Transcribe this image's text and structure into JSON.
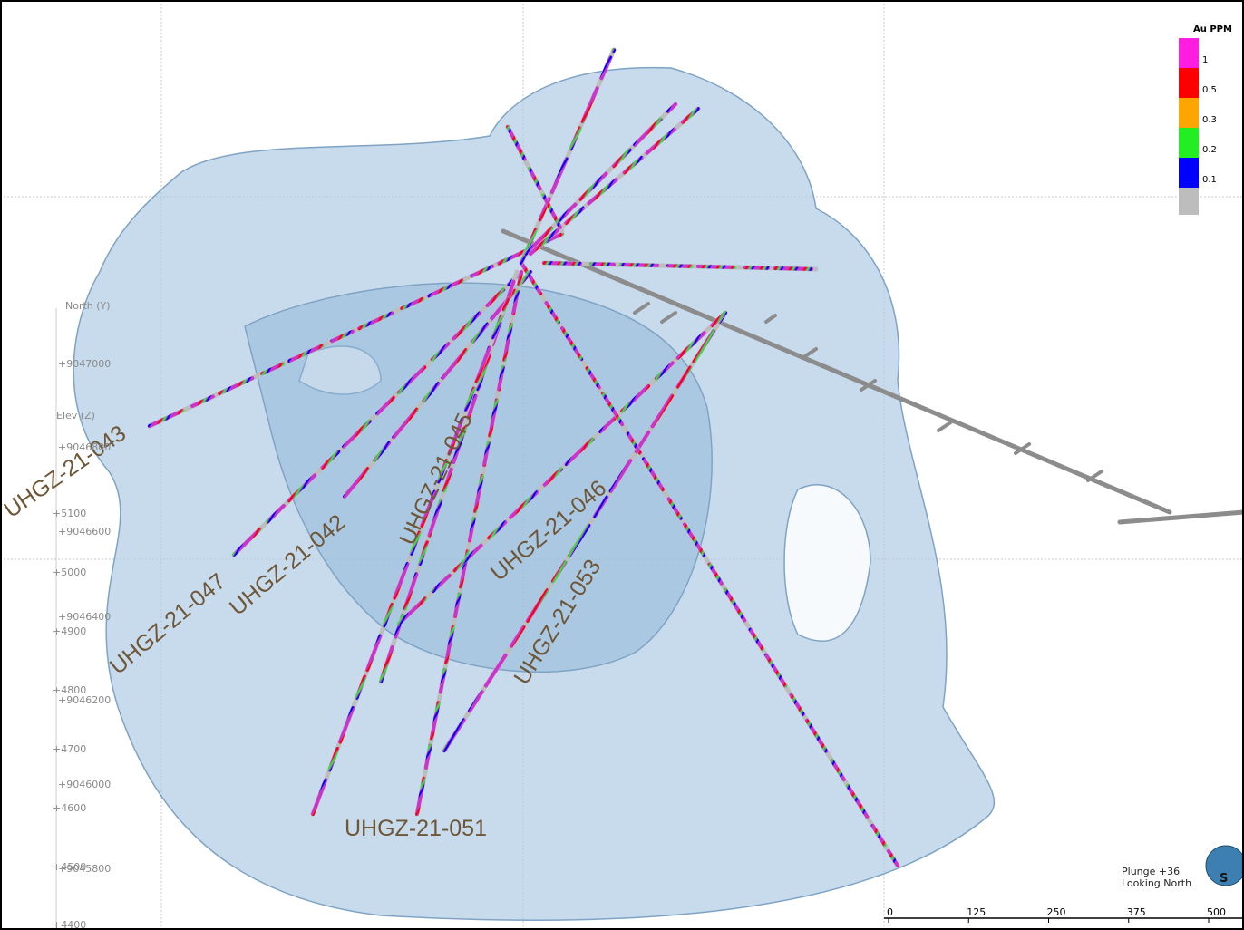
{
  "legend": {
    "title": "Au PPM",
    "items": [
      {
        "label": "1",
        "color": "#ff1ee0"
      },
      {
        "label": "0.5",
        "color": "#ff0000"
      },
      {
        "label": "0.3",
        "color": "#ffa500"
      },
      {
        "label": "0.2",
        "color": "#22ee22"
      },
      {
        "label": "0.1",
        "color": "#0000ff"
      }
    ],
    "base_color": "#bdbdbd"
  },
  "axes": {
    "north_label": "North (Y)",
    "elev_label": "Elev (Z)",
    "north_ticks": [
      "+9047000",
      "+9046800",
      "+9046600",
      "+9046400",
      "+9046200",
      "+9046000",
      "+9045800"
    ],
    "elev_ticks": [
      "+5100",
      "+5000",
      "+4900",
      "+4800",
      "+4700",
      "+4600",
      "+4500",
      "+4400"
    ]
  },
  "drill_holes": [
    "UHGZ-21-043",
    "UHGZ-21-047",
    "UHGZ-21-042",
    "UHGZ-21-045",
    "UHGZ-21-046",
    "UHGZ-21-053",
    "UHGZ-21-051"
  ],
  "scale_bar": {
    "ticks": [
      0,
      125,
      250,
      375,
      500
    ]
  },
  "view": {
    "plunge": "Plunge +36",
    "direction": "Looking North"
  }
}
